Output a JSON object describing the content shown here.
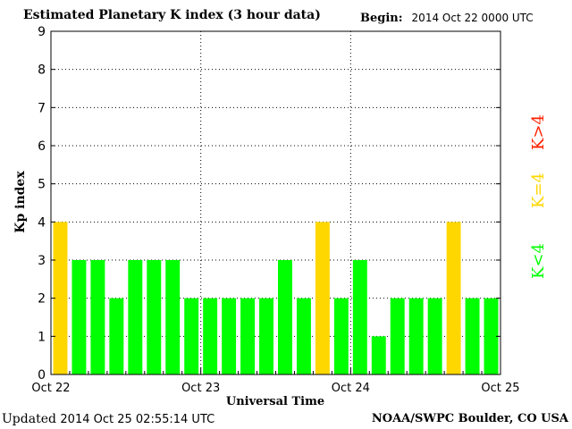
{
  "header": {
    "title": "Estimated Planetary K index (3 hour data)",
    "begin_label": "Begin:",
    "begin_value": "2014 Oct 22 0000 UTC"
  },
  "footer": {
    "updated_label": "Updated",
    "updated_value": "2014 Oct 25 02:55:14 UTC",
    "credit": "NOAA/SWPC Boulder, CO USA"
  },
  "colors": {
    "below4": "#00ff00",
    "equal4": "#ffd700",
    "above4": "#ff2000"
  },
  "chart_data": {
    "type": "bar",
    "title": "Estimated Planetary K index (3 hour data)",
    "xlabel": "Universal Time",
    "ylabel": "Kp index",
    "ylim": [
      0,
      9
    ],
    "yticks": [
      "0",
      "1",
      "2",
      "3",
      "4",
      "5",
      "6",
      "7",
      "8",
      "9"
    ],
    "xtick_labels": [
      "Oct 22",
      "Oct 23",
      "Oct 24",
      "Oct 25"
    ],
    "grid": true,
    "values": [
      4,
      3,
      3,
      2,
      3,
      3,
      3,
      2,
      2,
      2,
      2,
      2,
      3,
      2,
      4,
      2,
      3,
      1,
      2,
      2,
      2,
      4,
      2,
      2
    ],
    "legend": [
      "K<4",
      "K=4",
      "K>4"
    ]
  }
}
